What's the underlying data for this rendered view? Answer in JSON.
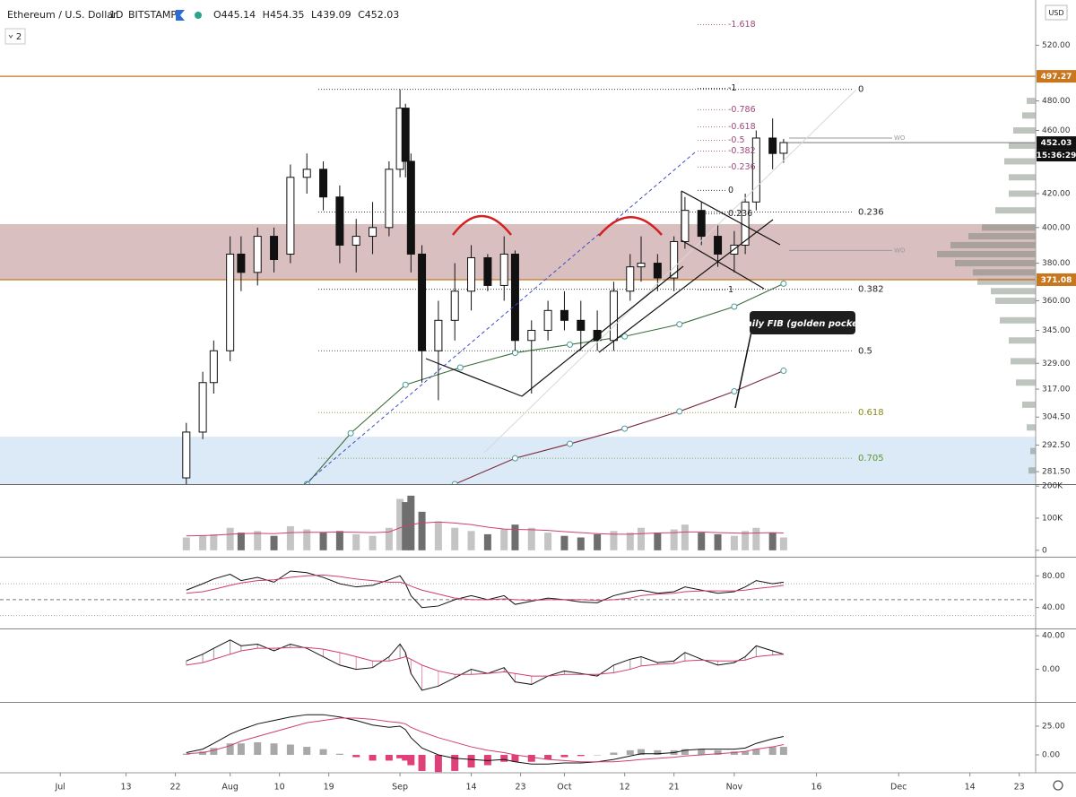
{
  "chart_data": [
    {
      "type": "candlestick",
      "symbol": "Ethereum / U.S. Dollar",
      "interval": "1D",
      "exchange": "BITSTAMP",
      "ohlc_labels": [
        "O",
        "H",
        "L",
        "C"
      ],
      "indicator_count": 2,
      "currency": "USD",
      "countdown": "15:36:29",
      "x": [
        23,
        26,
        28,
        31,
        33,
        36,
        39,
        42,
        45,
        48,
        51,
        54,
        57,
        60,
        62,
        63,
        64,
        66,
        69,
        72,
        75,
        78,
        81,
        83,
        86,
        89,
        92,
        95,
        98,
        101,
        104,
        106,
        109,
        112,
        114,
        117,
        120,
        123,
        125,
        127,
        130,
        132
      ],
      "open": [
        279,
        298,
        320,
        335,
        385,
        375,
        395,
        385,
        430,
        435,
        418,
        390,
        395,
        400,
        435,
        475,
        440,
        385,
        335,
        350,
        365,
        383,
        368,
        385,
        340,
        345,
        355,
        350,
        345,
        340,
        365,
        378,
        380,
        372,
        392,
        410,
        395,
        385,
        390,
        415,
        455,
        445.14
      ],
      "high": [
        302,
        325,
        340,
        395,
        395,
        400,
        400,
        438,
        445,
        440,
        425,
        405,
        415,
        440,
        488,
        478,
        445,
        390,
        360,
        380,
        390,
        385,
        395,
        387,
        350,
        360,
        365,
        360,
        355,
        370,
        385,
        395,
        385,
        395,
        418,
        415,
        402,
        398,
        420,
        460,
        468,
        454.35
      ],
      "low": [
        276,
        295,
        315,
        330,
        365,
        368,
        375,
        380,
        420,
        410,
        380,
        375,
        385,
        395,
        430,
        430,
        375,
        320,
        312,
        340,
        355,
        365,
        360,
        335,
        315,
        340,
        345,
        335,
        335,
        335,
        360,
        370,
        365,
        365,
        388,
        390,
        378,
        375,
        385,
        410,
        435,
        439.09
      ],
      "close": [
        298,
        320,
        335,
        385,
        375,
        395,
        382,
        430,
        435,
        418,
        390,
        395,
        400,
        435,
        475,
        440,
        385,
        335,
        350,
        365,
        383,
        368,
        385,
        340,
        345,
        355,
        350,
        345,
        340,
        365,
        378,
        380,
        372,
        392,
        410,
        395,
        385,
        390,
        415,
        455,
        445,
        452.03
      ],
      "up_color": "#ffffff",
      "down_color": "#111111",
      "log_scale": true,
      "ylim": [
        276.5,
        555
      ],
      "xlim": [
        -11,
        178
      ],
      "yticks": [
        {
          "value": 520,
          "label": "520.00"
        },
        {
          "value": 480,
          "label": "480.00"
        },
        {
          "value": 460,
          "label": "460.00"
        },
        {
          "value": 420,
          "label": "420.00"
        },
        {
          "value": 400,
          "label": "400.00"
        },
        {
          "value": 380,
          "label": "380.00"
        },
        {
          "value": 360,
          "label": "360.00"
        },
        {
          "value": 345,
          "label": "345.00"
        },
        {
          "value": 329,
          "label": "329.00"
        },
        {
          "value": 317,
          "label": "317.00"
        },
        {
          "value": 304.5,
          "label": "304.50"
        },
        {
          "value": 292.5,
          "label": "292.50"
        },
        {
          "value": 281.5,
          "label": "281.50"
        }
      ],
      "xticks": [
        {
          "value": 0,
          "label": "Jul"
        },
        {
          "value": 12,
          "label": "13"
        },
        {
          "value": 21,
          "label": "22"
        },
        {
          "value": 31,
          "label": "Aug"
        },
        {
          "value": 40,
          "label": "10"
        },
        {
          "value": 49,
          "label": "19"
        },
        {
          "value": 62,
          "label": "Sep"
        },
        {
          "value": 75,
          "label": "14"
        },
        {
          "value": 84,
          "label": "23"
        },
        {
          "value": 92,
          "label": "Oct"
        },
        {
          "value": 103,
          "label": "12"
        },
        {
          "value": 112,
          "label": "21"
        },
        {
          "value": 123,
          "label": "Nov"
        },
        {
          "value": 138,
          "label": "16"
        },
        {
          "value": 153,
          "label": "Dec"
        },
        {
          "value": 166,
          "label": "14"
        },
        {
          "value": 175,
          "label": "23"
        }
      ],
      "levels": [
        {
          "value": 497.27,
          "color": "#c8771e"
        },
        {
          "value": 371.08,
          "color": "#c8771e"
        }
      ],
      "zones": [
        {
          "from": 371.08,
          "to": 402,
          "color": "rgba(140,60,60,0.33)"
        },
        {
          "from": 276.5,
          "to": 296,
          "color": "rgba(130,175,225,0.28)"
        }
      ],
      "ma_lines": [
        {
          "color": "#3d6e3d",
          "x": [
            45,
            53,
            63,
            73,
            83,
            93,
            103,
            113,
            123,
            132
          ],
          "values": [
            276.5,
            297.5,
            319,
            327,
            334,
            338,
            342,
            348,
            357,
            369
          ]
        },
        {
          "color": "#7a2a3a",
          "x": [
            72,
            83,
            93,
            103,
            113,
            123,
            132
          ],
          "values": [
            276.5,
            287,
            293,
            299.5,
            307,
            316,
            325.5
          ]
        }
      ],
      "fib_main": {
        "levels": [
          0,
          0.236,
          0.382,
          0.5,
          0.618,
          0.705
        ],
        "prices": [
          488,
          409,
          366,
          335,
          306.5,
          287
        ],
        "colors": [
          "#222222",
          "#222222",
          "#222222",
          "#222222",
          "#8a8a1a",
          "#5a9a2a"
        ]
      },
      "fib_small": {
        "levels": [
          -1.618,
          -1,
          -0.786,
          -0.618,
          -0.5,
          -0.382,
          -0.236,
          0,
          0.236,
          1
        ],
        "prices": [
          535.6,
          488.8,
          474,
          462.4,
          453.5,
          446.6,
          436.4,
          422,
          408,
          365.7
        ],
        "colors": [
          "#9c4a7a",
          "#222222",
          "#9c4a7a",
          "#9c4a7a",
          "#9c4a7a",
          "#9c4a7a",
          "#9c4a7a",
          "#222222",
          "#222222",
          "#222222"
        ]
      },
      "wo": [
        {
          "text": "WO",
          "value": 455
        },
        {
          "text": "WO",
          "value": 387
        }
      ],
      "annotation": "Daily FIB (golden pocket)",
      "volume_profile": {
        "prices": [
          480,
          470,
          460,
          450,
          440,
          430,
          420,
          410,
          400,
          395,
          390,
          385,
          380,
          375,
          370,
          365,
          360,
          350,
          340,
          330,
          320,
          310,
          300,
          290,
          282
        ],
        "values": [
          10,
          15,
          25,
          30,
          35,
          30,
          30,
          45,
          60,
          75,
          95,
          110,
          90,
          70,
          65,
          50,
          45,
          40,
          30,
          28,
          22,
          15,
          10,
          6,
          8
        ],
        "color": "rgba(110,125,110,0.45)"
      }
    },
    {
      "type": "bar",
      "values": [
        40000,
        45000,
        50000,
        70000,
        55000,
        60000,
        45000,
        75000,
        65000,
        55000,
        60000,
        50000,
        45000,
        70000,
        160000,
        150000,
        170000,
        120000,
        90000,
        70000,
        60000,
        50000,
        65000,
        80000,
        70000,
        55000,
        45000,
        40000,
        50000,
        60000,
        55000,
        70000,
        55000,
        65000,
        80000,
        55000,
        50000,
        45000,
        60000,
        70000,
        55000,
        40000
      ],
      "up_color": "#c4c4c4",
      "down_color": "#6e6e6e",
      "ma": {
        "color": "#d0406a",
        "values": [
          45000,
          46000,
          47000,
          50000,
          52000,
          53000,
          52000,
          55000,
          56000,
          56000,
          57000,
          56000,
          55000,
          57000,
          70000,
          75000,
          80000,
          85000,
          88000,
          85000,
          80000,
          72000,
          66000,
          65000,
          64000,
          62000,
          58000,
          55000,
          52000,
          50000,
          50000,
          52000,
          54000,
          55000,
          57000,
          57000,
          55000,
          54000,
          53000,
          54000,
          55000,
          54000
        ]
      },
      "ylim": [
        -20000,
        206000
      ],
      "yticks": [
        {
          "value": 200000,
          "label": "200K"
        },
        {
          "value": 100000,
          "label": "100K"
        },
        0
      ]
    },
    {
      "type": "line",
      "series": [
        {
          "color": "#111111",
          "values": [
            62,
            70,
            76,
            82,
            74,
            78,
            72,
            86,
            84,
            78,
            70,
            66,
            68,
            75,
            80,
            70,
            55,
            40,
            42,
            50,
            55,
            50,
            55,
            44,
            48,
            52,
            50,
            47,
            46,
            55,
            60,
            62,
            58,
            60,
            66,
            62,
            58,
            60,
            66,
            74,
            70,
            72
          ]
        },
        {
          "color": "#d0406a",
          "values": [
            58,
            60,
            63,
            68,
            71,
            74,
            75,
            78,
            80,
            81,
            79,
            76,
            74,
            72,
            72,
            70,
            67,
            62,
            57,
            52,
            50,
            50,
            51,
            50,
            49,
            50,
            50,
            50,
            49,
            50,
            52,
            55,
            57,
            58,
            60,
            61,
            61,
            61,
            62,
            64,
            66,
            68
          ]
        }
      ],
      "bands": [
        70,
        50,
        30
      ],
      "ylim": [
        13.7,
        102.9
      ],
      "yticks": [
        {
          "value": 80,
          "label": "80.00"
        },
        {
          "value": 40,
          "label": "40.00"
        }
      ]
    },
    {
      "type": "line",
      "series": [
        {
          "color": "#111111",
          "values": [
            10,
            18,
            25,
            35,
            28,
            30,
            22,
            30,
            25,
            15,
            5,
            0,
            2,
            15,
            30,
            20,
            -5,
            -25,
            -20,
            -10,
            0,
            -5,
            2,
            -15,
            -18,
            -8,
            -2,
            -5,
            -8,
            5,
            12,
            15,
            8,
            10,
            20,
            12,
            5,
            8,
            15,
            28,
            22,
            18
          ]
        },
        {
          "color": "#d0406a",
          "values": [
            5,
            8,
            12,
            18,
            22,
            25,
            25,
            26,
            26,
            24,
            20,
            15,
            10,
            10,
            13,
            15,
            12,
            5,
            -2,
            -6,
            -6,
            -5,
            -3,
            -5,
            -8,
            -8,
            -6,
            -6,
            -6,
            -4,
            0,
            4,
            6,
            7,
            10,
            11,
            10,
            10,
            11,
            15,
            17,
            18
          ]
        }
      ],
      "hatch": true,
      "ylim": [
        -38.9,
        47.6
      ],
      "yticks": [
        {
          "value": 40,
          "label": "40.00"
        },
        {
          "value": 0,
          "label": "0.00"
        }
      ]
    },
    {
      "type": "macd",
      "series": [
        {
          "color": "#111111",
          "values": [
            2,
            5,
            10,
            18,
            22,
            27,
            30,
            33,
            35,
            35,
            33,
            30,
            26,
            24,
            25,
            22,
            15,
            6,
            0,
            -3,
            -4,
            -5,
            -4,
            -6,
            -8,
            -8,
            -7,
            -7,
            -6,
            -4,
            -1,
            1,
            1,
            2,
            4,
            5,
            5,
            5,
            6,
            10,
            14,
            16
          ]
        },
        {
          "color": "#d0406a",
          "values": [
            1,
            2,
            4,
            8,
            12,
            16,
            20,
            24,
            28,
            30,
            32,
            32,
            31,
            29,
            28,
            27,
            24,
            20,
            15,
            11,
            7,
            4,
            2,
            0,
            -2,
            -4,
            -5,
            -6,
            -6,
            -6,
            -5,
            -4,
            -3,
            -2,
            -1,
            0,
            1,
            2,
            3,
            5,
            7,
            9
          ]
        }
      ],
      "histogram": {
        "values": [
          1,
          3,
          6,
          10,
          10,
          11,
          10,
          9,
          7,
          5,
          1,
          -2,
          -5,
          -5,
          -3,
          -5,
          -9,
          -14,
          -15,
          -14,
          -11,
          -9,
          -6,
          -6,
          -6,
          -4,
          -2,
          -1,
          0,
          2,
          4,
          5,
          4,
          4,
          5,
          5,
          4,
          3,
          3,
          5,
          7,
          7
        ],
        "up_color": "#a8a8a8",
        "down_color": "#e0407a"
      },
      "ylim": [
        -15.6,
        45.3
      ],
      "yticks": [
        {
          "value": 25,
          "label": "25.00"
        },
        {
          "value": 0,
          "label": "0.00"
        }
      ]
    }
  ]
}
